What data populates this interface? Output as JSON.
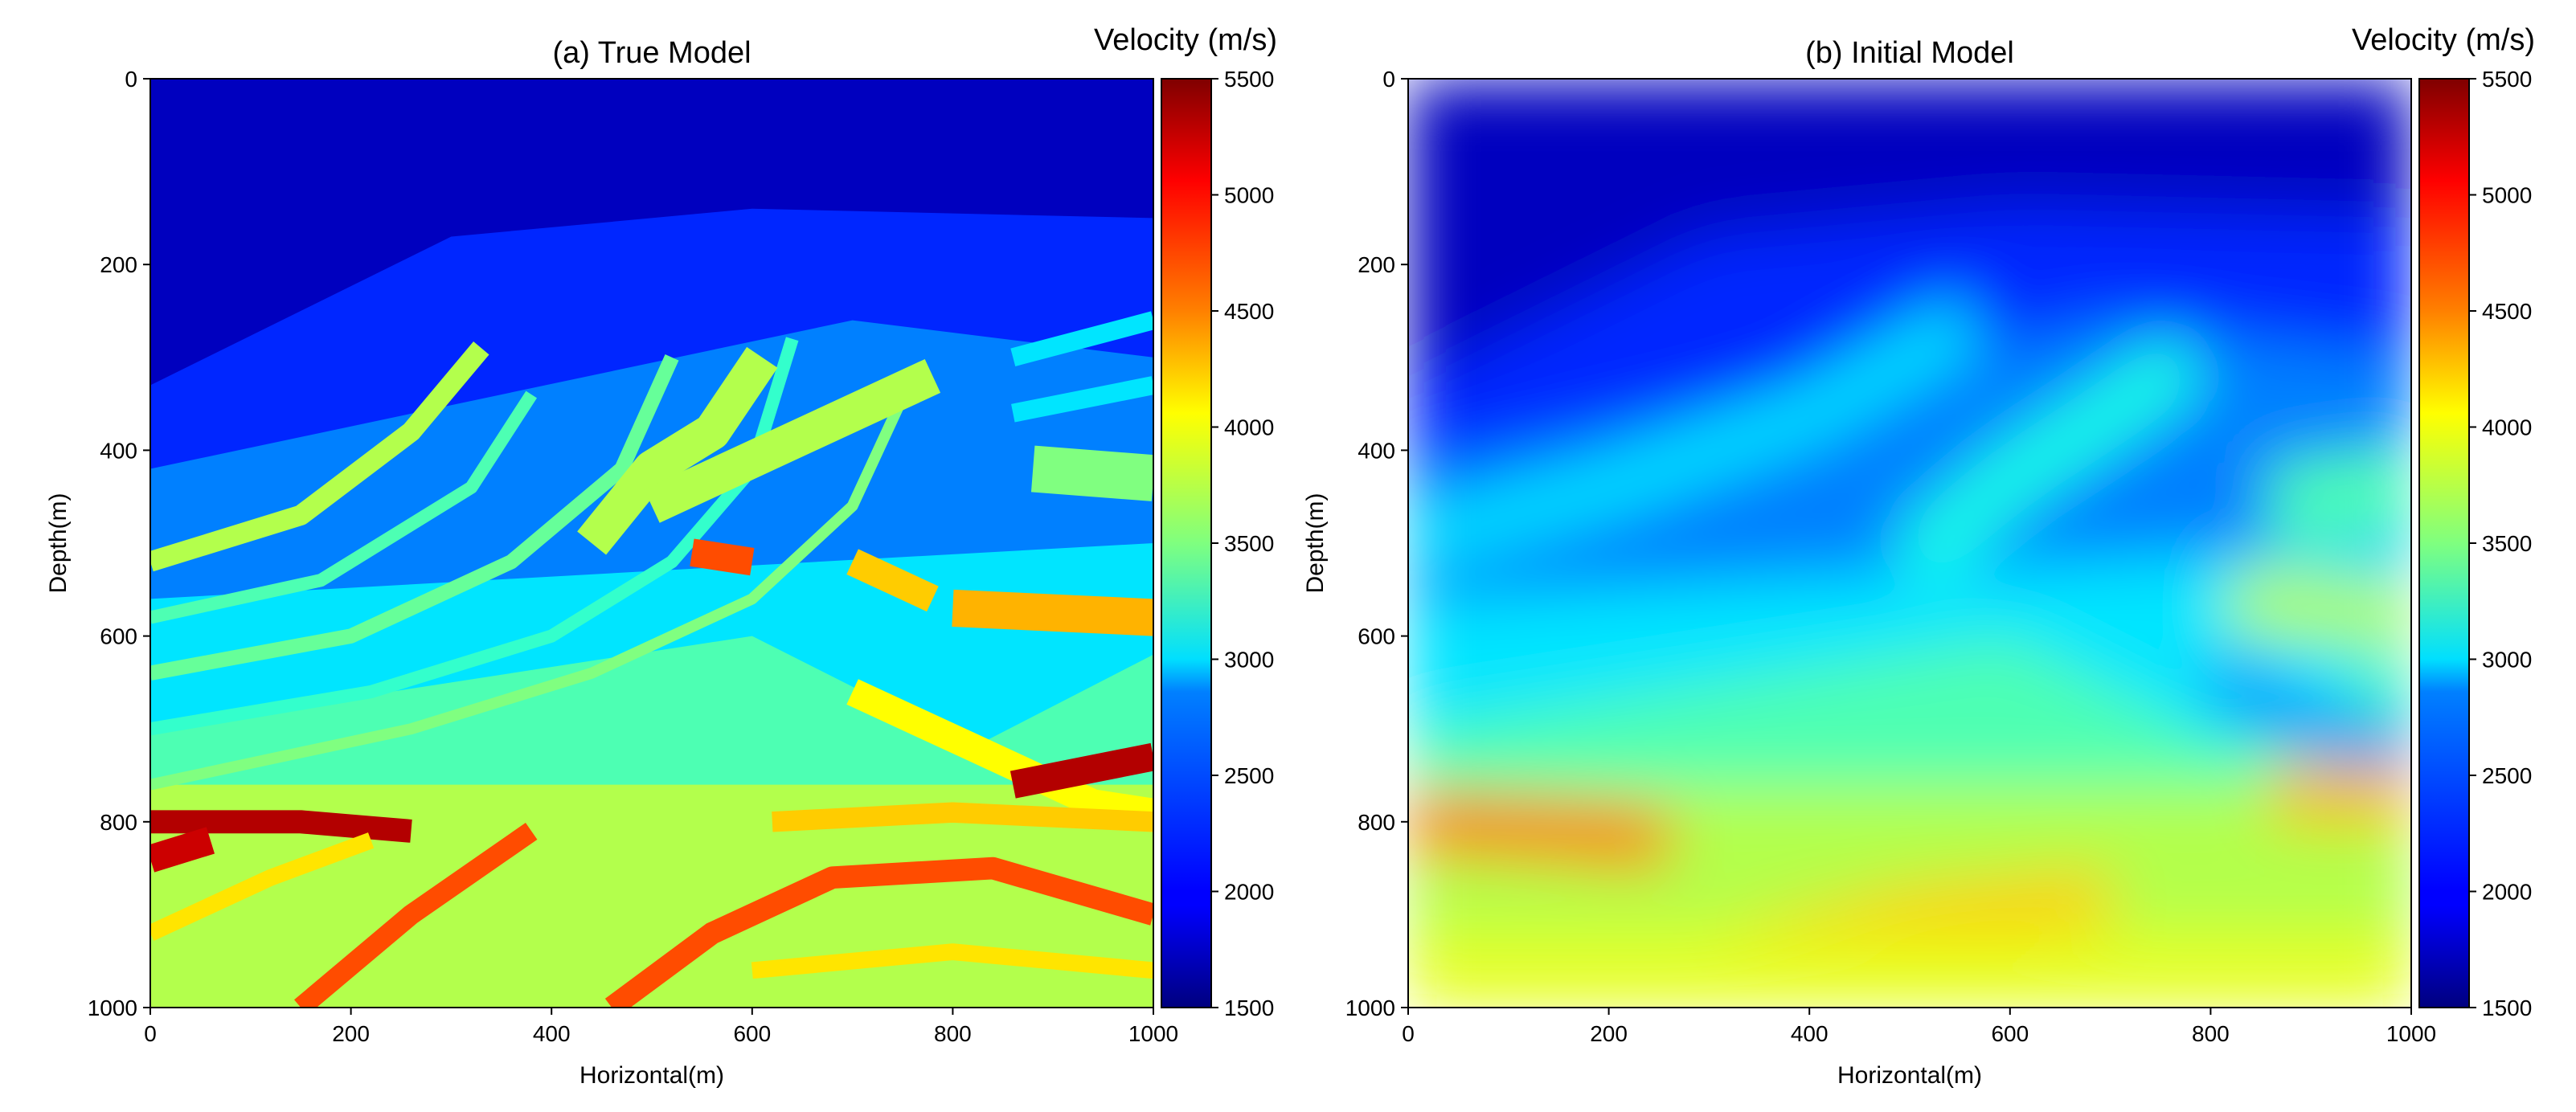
{
  "chart_data": [
    {
      "type": "heatmap",
      "title": "(a) True Model",
      "xlabel": "Horizontal(m)",
      "ylabel": "Depth(m)",
      "xlim": [
        0,
        1000
      ],
      "ylim": [
        1000,
        0
      ],
      "x_ticks": [
        "0",
        "200",
        "400",
        "600",
        "800",
        "1000"
      ],
      "y_ticks": [
        "0",
        "200",
        "400",
        "600",
        "800",
        "1000"
      ],
      "colorbar": {
        "title": "Velocity (m/s)",
        "colormap": "jet",
        "range": [
          1500,
          5500
        ],
        "ticks": [
          "1500",
          "2000",
          "2500",
          "3000",
          "3500",
          "4000",
          "4500",
          "5000",
          "5500"
        ]
      }
    },
    {
      "type": "heatmap",
      "title": "(b) Initial Model",
      "xlabel": "Horizontal(m)",
      "ylabel": "Depth(m)",
      "xlim": [
        0,
        1000
      ],
      "ylim": [
        1000,
        0
      ],
      "x_ticks": [
        "0",
        "200",
        "400",
        "600",
        "800",
        "1000"
      ],
      "y_ticks": [
        "0",
        "200",
        "400",
        "600",
        "800",
        "1000"
      ],
      "colorbar": {
        "title": "Velocity (m/s)",
        "colormap": "jet",
        "range": [
          1500,
          5500
        ],
        "ticks": [
          "1500",
          "2000",
          "2500",
          "3000",
          "3500",
          "4000",
          "4500",
          "5000",
          "5500"
        ]
      }
    }
  ]
}
